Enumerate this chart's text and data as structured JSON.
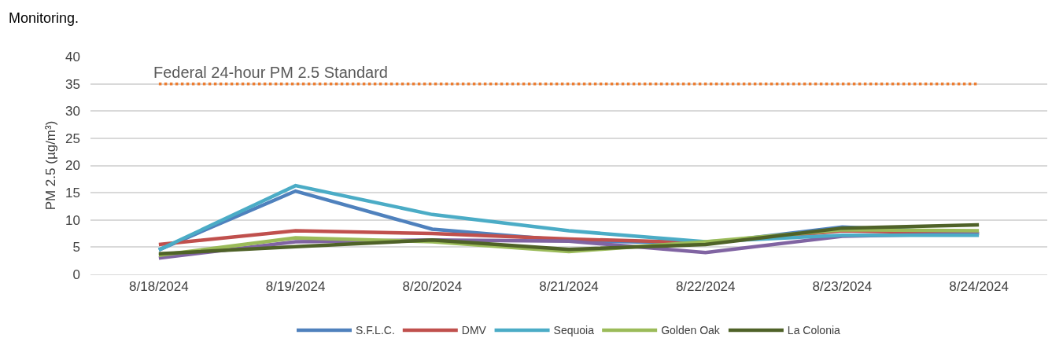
{
  "chart_data": {
    "type": "line",
    "annotations": [
      "Monitoring."
    ],
    "ylabel": "PM 2.5 (µg/m³)",
    "categories": [
      "8/18/2024",
      "8/19/2024",
      "8/20/2024",
      "8/21/2024",
      "8/22/2024",
      "8/23/2024",
      "8/24/2024"
    ],
    "series": [
      {
        "name": "S.F.L.C.",
        "color": "#4f81bd",
        "values": [
          4.5,
          15.3,
          8.3,
          6.2,
          5.7,
          8.7,
          7.5
        ]
      },
      {
        "name": "DMV",
        "color": "#c0504d",
        "values": [
          5.5,
          8,
          7.5,
          6.5,
          5.8,
          8,
          7.5
        ]
      },
      {
        "color": "#8064a2",
        "values": [
          3,
          6,
          6.3,
          6.1,
          4,
          7,
          7.5
        ]
      },
      {
        "name": "Sequoia",
        "color": "#4bacc6",
        "values": [
          4.5,
          16.3,
          11,
          8,
          6,
          7.2,
          7.2
        ]
      },
      {
        "name": "Golden Oak",
        "color": "#9bbb59",
        "values": [
          3.5,
          6.7,
          6,
          4.2,
          6,
          8.2,
          8
        ]
      },
      {
        "name": "La Colonia",
        "color": "#4f6228",
        "values": [
          3.8,
          5.1,
          6.3,
          4.6,
          5.5,
          8.5,
          9.1
        ]
      }
    ],
    "ylim": [
      0,
      40
    ],
    "yticks": [
      0,
      5,
      10,
      15,
      20,
      25,
      30,
      35,
      40
    ],
    "ref_lines": [
      {
        "axis": "y",
        "value": 35,
        "label": "Federal 24-hour PM 2.5 Standard",
        "color": "#ed7d31",
        "line_style": "dotted"
      }
    ],
    "grid": "y",
    "legend": "bottom",
    "marker": "none",
    "line_style": "solid"
  }
}
